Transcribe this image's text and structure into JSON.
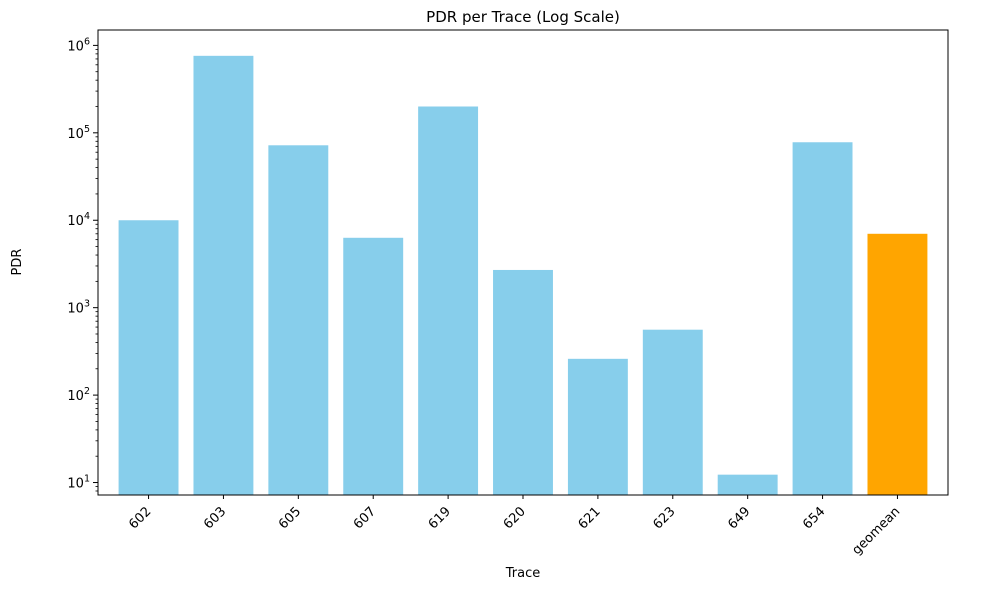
{
  "chart_data": {
    "type": "bar",
    "title": "PDR per Trace (Log Scale)",
    "xlabel": "Trace",
    "ylabel": "PDR",
    "yscale": "log",
    "ylim": [
      7.2,
      1500000
    ],
    "y_ticks": [
      10,
      100,
      1000,
      10000,
      100000,
      1000000
    ],
    "y_tick_labels": [
      {
        "base": "10",
        "exp": "1"
      },
      {
        "base": "10",
        "exp": "2"
      },
      {
        "base": "10",
        "exp": "3"
      },
      {
        "base": "10",
        "exp": "4"
      },
      {
        "base": "10",
        "exp": "5"
      },
      {
        "base": "10",
        "exp": "6"
      }
    ],
    "categories": [
      "602",
      "603",
      "605",
      "607",
      "619",
      "620",
      "621",
      "623",
      "649",
      "654",
      "geomean"
    ],
    "values": [
      10000,
      760000,
      72000,
      6300,
      200000,
      2700,
      260,
      560,
      12.3,
      78000,
      7000
    ],
    "colors": [
      "#87ceeb",
      "#87ceeb",
      "#87ceeb",
      "#87ceeb",
      "#87ceeb",
      "#87ceeb",
      "#87ceeb",
      "#87ceeb",
      "#87ceeb",
      "#87ceeb",
      "#ffa500"
    ],
    "x_tick_rotation": -45,
    "grid": false,
    "legend": "none"
  }
}
